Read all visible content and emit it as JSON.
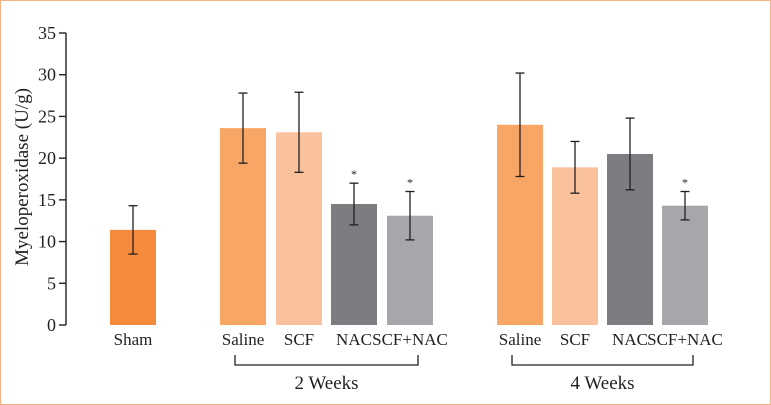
{
  "chart_data": {
    "type": "bar",
    "title": "",
    "xlabel": "",
    "ylabel": "Myeloperoxidase (U/g)",
    "ylim": [
      0,
      35
    ],
    "yticks": [
      "0",
      "5",
      "10",
      "15",
      "20",
      "25",
      "30",
      "35"
    ],
    "bars": [
      {
        "label": "Sham",
        "value": 11.4,
        "error": 2.9,
        "color": "#f58a3c",
        "sig": ""
      },
      {
        "label": "Saline",
        "value": 23.6,
        "error": 4.2,
        "color": "#f8a665",
        "sig": ""
      },
      {
        "label": "SCF",
        "value": 23.1,
        "error": 4.8,
        "color": "#fac29c",
        "sig": ""
      },
      {
        "label": "NAC",
        "value": 14.5,
        "error": 2.5,
        "color": "#7c7d81",
        "sig": "*"
      },
      {
        "label": "SCF+NAC",
        "value": 13.1,
        "error": 2.9,
        "color": "#a6a7ab",
        "sig": "*"
      },
      {
        "label": "Saline",
        "value": 24.0,
        "error": 6.2,
        "color": "#f8a665",
        "sig": ""
      },
      {
        "label": "SCF",
        "value": 18.9,
        "error": 3.1,
        "color": "#fac29c",
        "sig": ""
      },
      {
        "label": "NAC",
        "value": 20.5,
        "error": 4.3,
        "color": "#7c7d81",
        "sig": ""
      },
      {
        "label": "SCF+NAC",
        "value": 14.3,
        "error": 1.7,
        "color": "#a6a7ab",
        "sig": "*"
      }
    ],
    "groups": [
      {
        "label": "2 Weeks",
        "first_bar": 1,
        "last_bar": 4
      },
      {
        "label": "4 Weeks",
        "first_bar": 5,
        "last_bar": 8
      }
    ]
  }
}
